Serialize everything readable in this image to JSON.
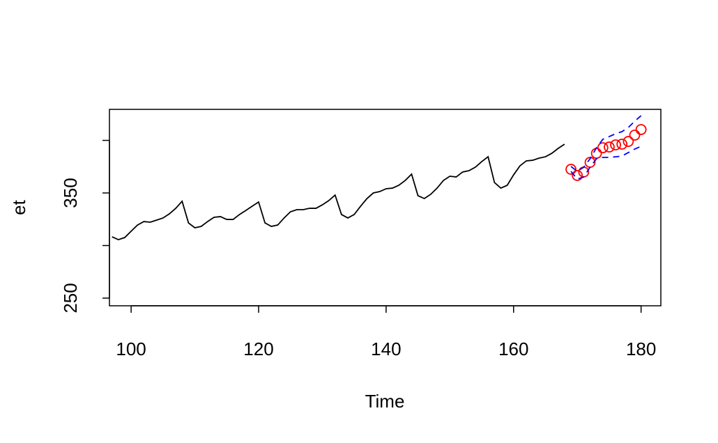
{
  "chart_data": {
    "type": "line",
    "xlabel": "Time",
    "ylabel": "et",
    "xlim": [
      96.6,
      183.1
    ],
    "xticks": [
      100,
      120,
      140,
      160,
      180
    ],
    "ylim": [
      242.7,
      429.5
    ],
    "yticks": [
      250,
      350
    ],
    "yticks_unlabeled": [
      300,
      400
    ],
    "series": [
      {
        "style": "line",
        "color": "#000000",
        "x": [
          97,
          98,
          99,
          100,
          101,
          102,
          103,
          104,
          105,
          106,
          107,
          108,
          109,
          110,
          111,
          112,
          113,
          114,
          115,
          116,
          117,
          118,
          119,
          120,
          121,
          122,
          123,
          124,
          125,
          126,
          127,
          128,
          129,
          130,
          131,
          132,
          133,
          134,
          135,
          136,
          137,
          138,
          139,
          140,
          141,
          142,
          143,
          144,
          145,
          146,
          147,
          148,
          149,
          150,
          151,
          152,
          153,
          154,
          155,
          156,
          157,
          158,
          159,
          160,
          161,
          162,
          163,
          164,
          165,
          166,
          167,
          168
        ],
        "values": [
          308.3,
          305.6,
          307.6,
          313.6,
          319.5,
          322.8,
          322.2,
          324.2,
          326.2,
          330.1,
          335.4,
          342.1,
          321.5,
          316.9,
          318.2,
          322.8,
          326.8,
          327.5,
          324.8,
          324.8,
          329.5,
          333.4,
          337.4,
          341.4,
          321.5,
          318.2,
          319.5,
          326.2,
          332.1,
          334.1,
          334.1,
          335.4,
          335.4,
          338.7,
          342.7,
          348.0,
          329.5,
          326.2,
          329.5,
          337.4,
          344.7,
          350.0,
          351.3,
          354.0,
          354.6,
          357.3,
          361.9,
          367.9,
          347.4,
          344.7,
          348.7,
          354.6,
          361.9,
          365.9,
          365.2,
          369.9,
          371.2,
          374.5,
          379.8,
          384.4,
          359.9,
          354.6,
          357.3,
          367.2,
          375.8,
          380.5,
          381.1,
          383.1,
          384.4,
          387.7,
          392.4,
          396.4
        ]
      },
      {
        "style": "points",
        "color": "#ff0000",
        "x": [
          169,
          170,
          171,
          172,
          173,
          174,
          175,
          176,
          177,
          178,
          179,
          180
        ],
        "values": [
          372.5,
          366.6,
          369.9,
          379.1,
          387.7,
          393.0,
          393.7,
          395.7,
          396.4,
          399.0,
          405.0,
          410.3
        ]
      },
      {
        "style": "dashed",
        "color": "#0000ff",
        "x": [
          169,
          170,
          171,
          172,
          173,
          174,
          175,
          176,
          177,
          178,
          179,
          180
        ],
        "values": [
          375.2,
          370.5,
          374.5,
          382.5,
          393.0,
          401.0,
          403.6,
          406.3,
          408.3,
          412.3,
          418.2,
          423.5
        ]
      },
      {
        "style": "dashed",
        "color": "#0000ff",
        "x": [
          169,
          170,
          171,
          172,
          173,
          174,
          175,
          176,
          177,
          178,
          179,
          180
        ],
        "values": [
          370.5,
          363.2,
          365.2,
          374.5,
          382.5,
          383.8,
          383.8,
          384.4,
          385.1,
          388.4,
          391.7,
          394.4
        ]
      }
    ]
  }
}
